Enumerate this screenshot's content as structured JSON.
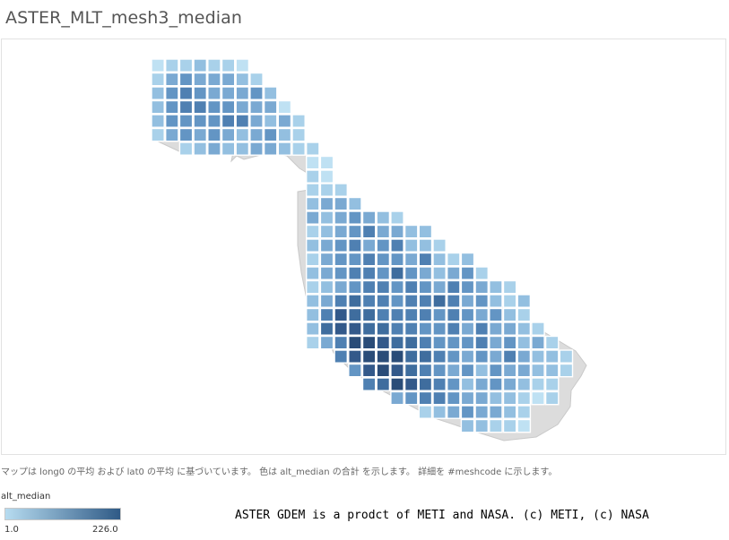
{
  "title": "ASTER_MLT_mesh3_median",
  "caption": "マップは long0 の平均 および lat0 の平均 に基づいています。 色は alt_median の合計 を示します。 詳細を #meshcode に示します。",
  "legend": {
    "title": "alt_median",
    "min_label": "1.0",
    "max_label": "226.0",
    "min": 1.0,
    "max": 226.0,
    "color_low": "#b7dcf0",
    "color_high": "#2f5a86"
  },
  "credit": "ASTER GDEM is a prodct of METI and NASA. (c) METI, (c) NASA",
  "colors": {
    "land": "#dcdcdc",
    "cell_border": "#ffffff",
    "frame_border": "#e2e2e2"
  },
  "map_data": {
    "type": "heatmap-grid",
    "color_field": "alt_median",
    "color_scale": "sequential",
    "grid_rows": [
      "1223221",
      "24544432",
      "356544453",
      "3566554441",
      "35555664341",
      "2454543463",
      "1235344332",
      "...11",
      "",
      "...",
      "...3343",
      "...3454432",
      "...6455344",
      "...4545362322",
      "...3564647342",
      "...2334546345432",
      "...2456565457645",
      "...3456577576472",
      "...2576576554545432",
      "...3687675644536323",
      "...2576888665543544532",
      "...1447888765535543453",
      "...7888766443554353",
      "...7888886332453232",
      "...7788775322442",
      "...5566543322",
      "...345432",
      "...2321"
    ]
  }
}
